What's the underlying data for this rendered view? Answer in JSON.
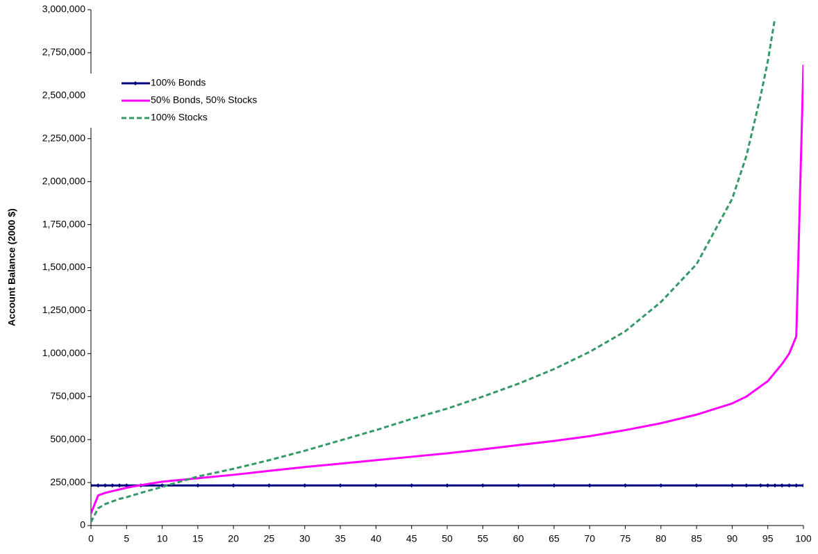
{
  "chart_data": {
    "type": "line",
    "ylabel": "Account Balance (2000 $)",
    "x": [
      0,
      1,
      2,
      3,
      4,
      5,
      7,
      10,
      15,
      20,
      25,
      30,
      35,
      40,
      45,
      50,
      55,
      60,
      65,
      70,
      75,
      80,
      85,
      90,
      92,
      94,
      95,
      96,
      97,
      98,
      99,
      100
    ],
    "series": [
      {
        "name": "100% Bonds",
        "color": "#000080",
        "style": "solid-markers",
        "values": [
          233000,
          233000,
          233000,
          233000,
          233000,
          233000,
          233000,
          233000,
          233000,
          233000,
          233000,
          233000,
          233000,
          233000,
          233000,
          233000,
          233000,
          233000,
          233000,
          233000,
          233000,
          233000,
          233000,
          233000,
          233000,
          233000,
          233000,
          233000,
          233000,
          233000,
          233000,
          233000
        ]
      },
      {
        "name": "50% Bonds, 50% Stocks",
        "color": "#ff00ff",
        "style": "solid",
        "values": [
          70000,
          175000,
          190000,
          200000,
          210000,
          220000,
          235000,
          255000,
          275000,
          295000,
          318000,
          340000,
          360000,
          380000,
          400000,
          420000,
          443000,
          468000,
          492000,
          520000,
          555000,
          595000,
          645000,
          710000,
          750000,
          810000,
          840000,
          890000,
          940000,
          1000000,
          1100000,
          2680000
        ]
      },
      {
        "name": "100% Stocks",
        "color": "#339966",
        "style": "dashed",
        "values": [
          20000,
          100000,
          125000,
          140000,
          155000,
          165000,
          190000,
          225000,
          285000,
          330000,
          380000,
          435000,
          495000,
          555000,
          620000,
          680000,
          750000,
          825000,
          910000,
          1010000,
          1130000,
          1300000,
          1520000,
          1900000,
          2150000,
          2500000,
          2700000,
          2950000,
          null,
          null,
          null,
          null
        ]
      }
    ],
    "xlim": [
      0,
      100
    ],
    "xticks": [
      0,
      5,
      10,
      15,
      20,
      25,
      30,
      35,
      40,
      45,
      50,
      55,
      60,
      65,
      70,
      75,
      80,
      85,
      90,
      95,
      100
    ],
    "ylim": [
      0,
      3000000
    ],
    "yticks": [
      0,
      {
        "value": 250000,
        "label": "250,000"
      },
      {
        "value": 500000,
        "label": "500,000"
      },
      {
        "value": 750000,
        "label": "750,000"
      },
      {
        "value": 1000000,
        "label": "1,000,000"
      },
      {
        "value": 1250000,
        "label": "1,250,000"
      },
      {
        "value": 1500000,
        "label": "1,500,000"
      },
      {
        "value": 1750000,
        "label": "1,750,000"
      },
      {
        "value": 2000000,
        "label": "2,000,000"
      },
      {
        "value": 2250000,
        "label": "2,250,000"
      },
      {
        "value": 2500000,
        "label": "2,500,000"
      },
      {
        "value": 2750000,
        "label": "2,750,000"
      },
      {
        "value": 3000000,
        "label": "3,000,000"
      }
    ],
    "grid": false,
    "legend": "upper-left"
  }
}
